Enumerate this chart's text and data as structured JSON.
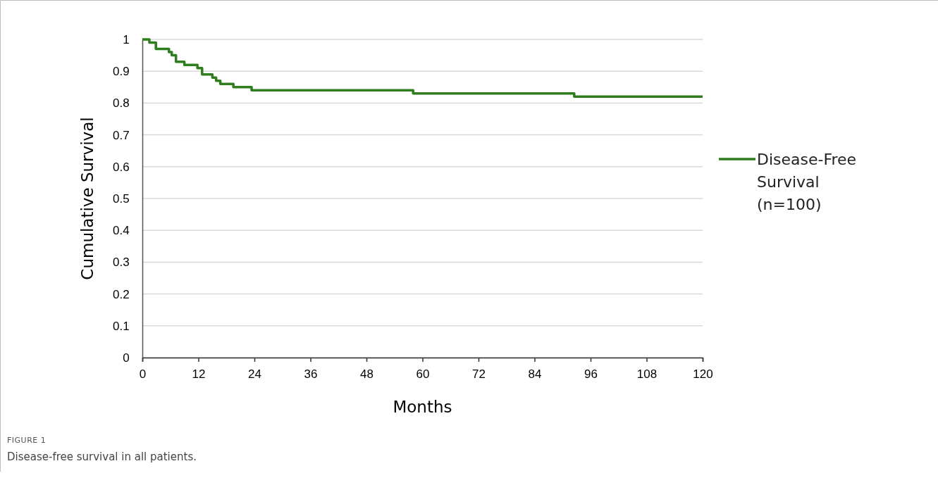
{
  "chart_data": {
    "type": "step",
    "xlabel": "Months",
    "ylabel": "Cumulative Survival",
    "x": [
      0,
      1.5,
      2.9,
      5.7,
      6.3,
      7.2,
      9,
      11.8,
      12.8,
      15,
      15.8,
      16.7,
      19.5,
      23.4,
      58,
      92.5,
      120
    ],
    "series": [
      {
        "name": "Disease-Free Survival (n=100)",
        "color": "#2e7d1e",
        "values": [
          1,
          0.99,
          0.97,
          0.96,
          0.95,
          0.93,
          0.92,
          0.91,
          0.89,
          0.88,
          0.87,
          0.86,
          0.85,
          0.84,
          0.83,
          0.82,
          0.82
        ]
      }
    ],
    "xlim": [
      0,
      120
    ],
    "xticks": [
      0,
      12,
      24,
      36,
      48,
      60,
      72,
      84,
      96,
      108,
      120
    ],
    "ylim": [
      0,
      1
    ],
    "yticks": [
      0,
      0.1,
      0.2,
      0.3,
      0.4,
      0.5,
      0.6,
      0.7,
      0.8,
      0.9,
      1
    ],
    "grid": "y",
    "legend": "right",
    "annotations": [
      "FIGURE 1",
      "Disease-free survival in all patients."
    ]
  }
}
